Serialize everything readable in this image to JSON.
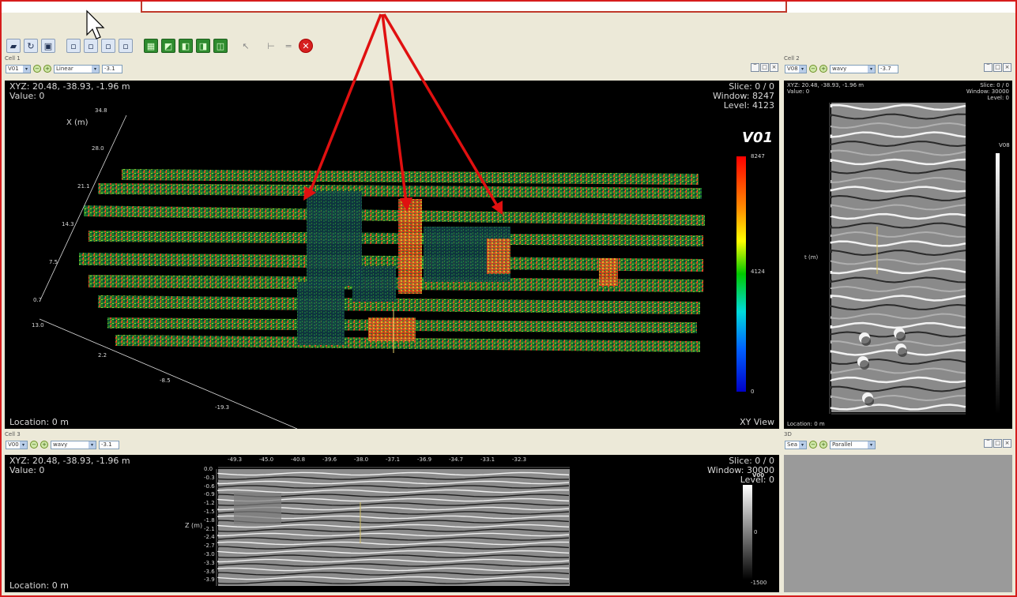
{
  "callout_label": "",
  "toolbar": {
    "icons": [
      "folder-open-icon",
      "refresh-icon",
      "save-icon",
      "view-1-icon",
      "view-2-icon",
      "view-3-icon",
      "view-4-icon",
      "grid-icon",
      "surface-icon",
      "slice-x-icon",
      "slice-y-icon",
      "slice-z-icon",
      "pointer-icon",
      "measure-icon",
      "ruler-icon",
      "stop-icon"
    ]
  },
  "cell1": {
    "title": "Cell 1",
    "vol_select": "V01",
    "mode_select": "Linear",
    "value_input": "-3.1",
    "xyz": "XYZ: 20.48, -38.93, -1.96 m",
    "value": "Value: 0",
    "slice": "Slice: 0 / 0",
    "window": "Window: 8247",
    "level": "Level: 4123",
    "location": "Location: 0 m",
    "view_name": "XY View",
    "axis_label": "X (m)",
    "x_ticks": [
      "34.8",
      "28.0",
      "21.1",
      "14.3",
      "7.5",
      "0.7"
    ],
    "y_ticks": [
      "13.0",
      "2.2",
      "-8.5",
      "-19.3"
    ],
    "colorbar": {
      "title": "V01",
      "max": "8247",
      "mid": "4124",
      "min": "0"
    }
  },
  "cell2": {
    "title": "Cell 2",
    "vol_select": "V08",
    "mode_select": "wavy",
    "value_input": "-3.7",
    "xyz": "XYZ: 20.48, -38.93, -1.96 m",
    "value": "Value: 0",
    "slice": "Slice: 0 / 0",
    "window": "Window: 30000",
    "level": "Level: 0",
    "location": "Location: 0 m",
    "axis_label": "t (m)",
    "colorbar_label": "V08"
  },
  "cell3": {
    "title": "Cell 3",
    "vol_select": "V00",
    "mode_select": "wavy",
    "value_input": "-3.1",
    "xyz": "XYZ: 20.48, -38.93, -1.96 m",
    "value": "Value: 0",
    "slice": "Slice: 0 / 0",
    "window": "Window: 30000",
    "level": "Level: 0",
    "location": "Location: 0 m",
    "axis_label": "Z (m)",
    "x_ticks": [
      "-49.3",
      "-45.0",
      "-40.8",
      "-39.6",
      "-38.0",
      "-37.1",
      "-36.9",
      "-34.7",
      "-33.1",
      "-32.3"
    ],
    "z_ticks": [
      "0.0",
      "-0.3",
      "-0.6",
      "-0.9",
      "-1.2",
      "-1.5",
      "-1.8",
      "-2.1",
      "-2.4",
      "-2.7",
      "-3.0",
      "-3.3",
      "-3.6",
      "-3.9"
    ],
    "colorbar": {
      "title": "V00",
      "mid": "0",
      "min": "-1500"
    }
  },
  "cell4": {
    "title": "3D",
    "vol_select": "Sea",
    "mode_select": "Parallel"
  },
  "colors": {
    "frame": "#d61c1c",
    "arrow": "#e01010",
    "panel_bg": "#ece9d8",
    "view_bg": "#000000"
  }
}
